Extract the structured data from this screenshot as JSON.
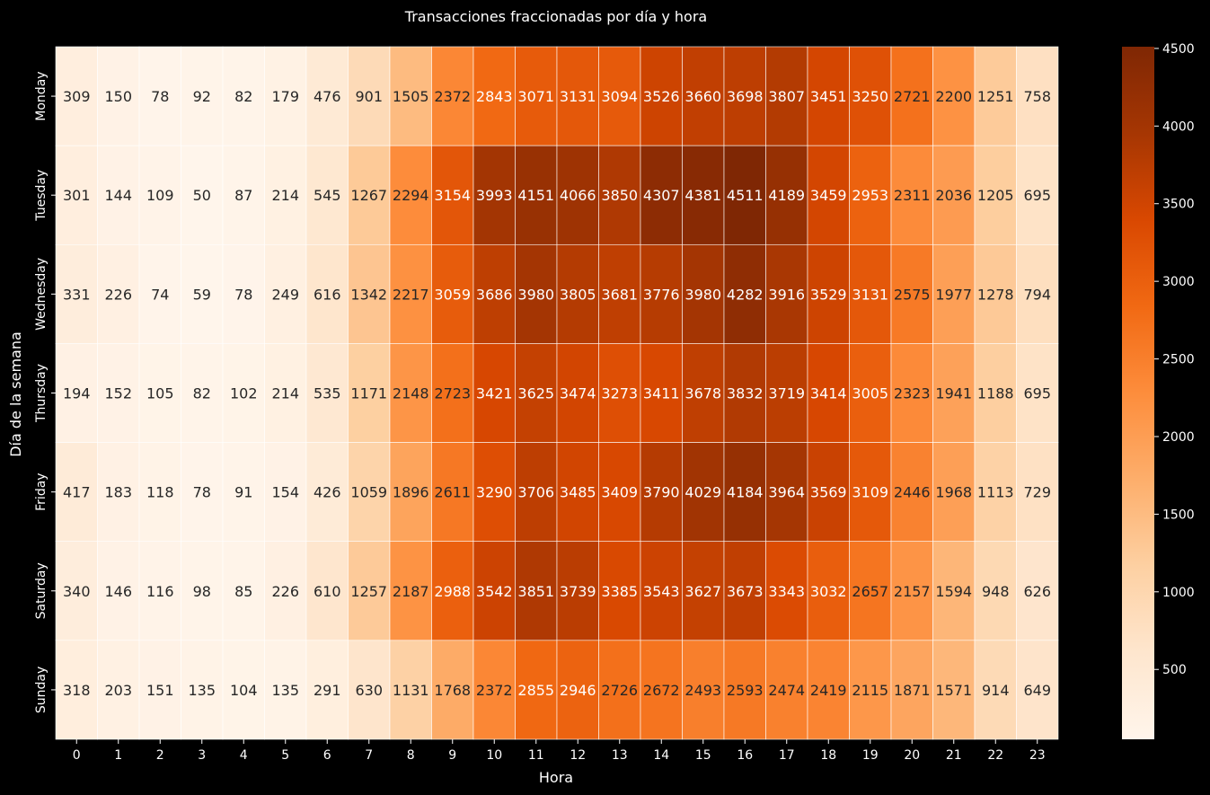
{
  "chart_data": {
    "type": "heatmap",
    "title": "Transacciones fraccionadas por día y hora",
    "xlabel": "Hora",
    "ylabel": "Día de la semana",
    "x_categories": [
      "0",
      "1",
      "2",
      "3",
      "4",
      "5",
      "6",
      "7",
      "8",
      "9",
      "10",
      "11",
      "12",
      "13",
      "14",
      "15",
      "16",
      "17",
      "18",
      "19",
      "20",
      "21",
      "22",
      "23"
    ],
    "y_categories": [
      "Monday",
      "Tuesday",
      "Wednesday",
      "Thursday",
      "Friday",
      "Saturday",
      "Sunday"
    ],
    "values": [
      [
        309,
        150,
        78,
        92,
        82,
        179,
        476,
        901,
        1505,
        2372,
        2843,
        3071,
        3131,
        3094,
        3526,
        3660,
        3698,
        3807,
        3451,
        3250,
        2721,
        2200,
        1251,
        758
      ],
      [
        301,
        144,
        109,
        50,
        87,
        214,
        545,
        1267,
        2294,
        3154,
        3993,
        4151,
        4066,
        3850,
        4307,
        4381,
        4511,
        4189,
        3459,
        2953,
        2311,
        2036,
        1205,
        695
      ],
      [
        331,
        226,
        74,
        59,
        78,
        249,
        616,
        1342,
        2217,
        3059,
        3686,
        3980,
        3805,
        3681,
        3776,
        3980,
        4282,
        3916,
        3529,
        3131,
        2575,
        1977,
        1278,
        794
      ],
      [
        194,
        152,
        105,
        82,
        102,
        214,
        535,
        1171,
        2148,
        2723,
        3421,
        3625,
        3474,
        3273,
        3411,
        3678,
        3832,
        3719,
        3414,
        3005,
        2323,
        1941,
        1188,
        695
      ],
      [
        417,
        183,
        118,
        78,
        91,
        154,
        426,
        1059,
        1896,
        2611,
        3290,
        3706,
        3485,
        3409,
        3790,
        4029,
        4184,
        3964,
        3569,
        3109,
        2446,
        1968,
        1113,
        729
      ],
      [
        340,
        146,
        116,
        98,
        85,
        226,
        610,
        1257,
        2187,
        2988,
        3542,
        3851,
        3739,
        3385,
        3543,
        3627,
        3673,
        3343,
        3032,
        2657,
        2157,
        1594,
        948,
        626
      ],
      [
        318,
        203,
        151,
        135,
        104,
        135,
        291,
        630,
        1131,
        1768,
        2372,
        2855,
        2946,
        2726,
        2672,
        2493,
        2593,
        2474,
        2419,
        2115,
        1871,
        1571,
        914,
        649
      ]
    ],
    "colormap": "Oranges",
    "value_range": [
      50,
      4511
    ],
    "colorbar": {
      "ticks": [
        500,
        1000,
        1500,
        2000,
        2500,
        3000,
        3500,
        4000,
        4500
      ]
    },
    "annotated": true,
    "grid": false,
    "legend": "colorbar-right"
  },
  "colors": {
    "background": "#000000",
    "text": "#ffffff",
    "cell_border": "#ffffff",
    "colormap_stops": [
      "#fff5eb",
      "#fee6ce",
      "#fdd0a2",
      "#fdae6b",
      "#fd8d3c",
      "#f16913",
      "#d94801",
      "#a63603",
      "#7f2704"
    ]
  }
}
